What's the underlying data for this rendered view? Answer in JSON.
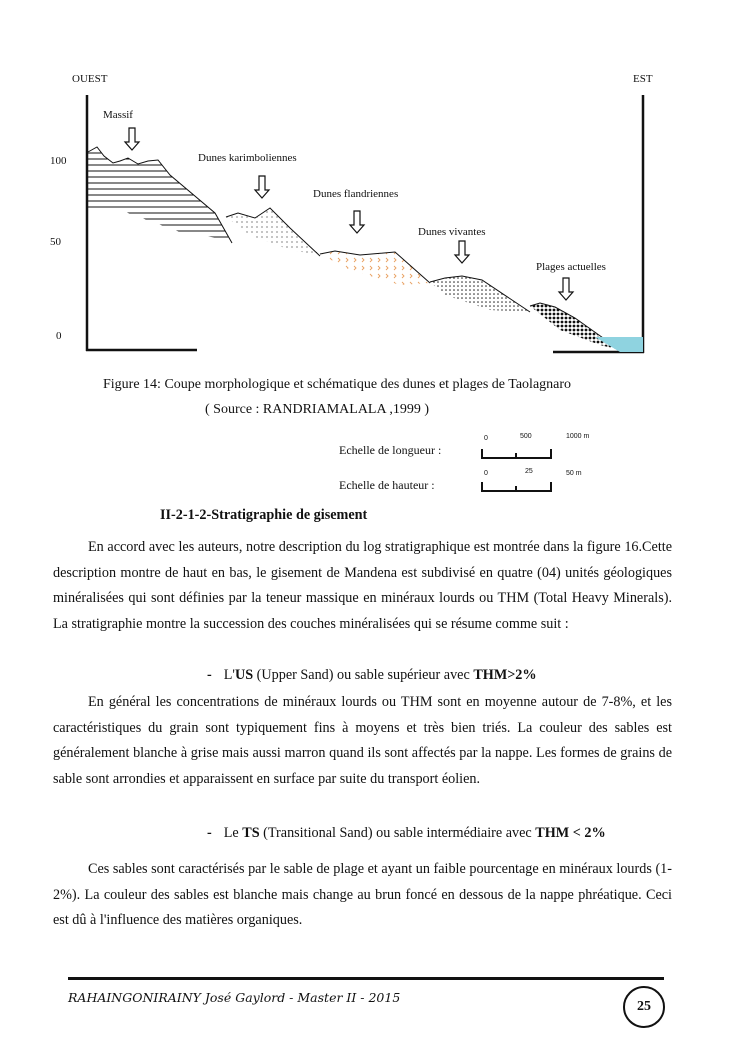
{
  "figure": {
    "west_label": "OUEST",
    "east_label": "EST",
    "y_ticks": [
      "100",
      "50",
      "0"
    ],
    "units": [
      "Massif",
      "Dunes karimboliennes",
      "Dunes flandriennes",
      "Dunes vivantes",
      "Plages actuelles"
    ],
    "caption": "Figure  14: Coupe morphologique et schématique des dunes et plages de Taolagnaro",
    "source": "( Source : RANDRIAMALALA ,1999 )",
    "water_color": "#8fd3e0",
    "flandrian_color": "#e8a060"
  },
  "scales": {
    "length_label": "Echelle de longueur :",
    "length_ticks": [
      "0",
      "500",
      "1000 m"
    ],
    "height_label": "Echelle de hauteur :",
    "height_ticks": [
      "0",
      "25",
      "50 m"
    ]
  },
  "section": {
    "heading": "II-2-1-2-Stratigraphie de gisement",
    "intro": "En accord avec les auteurs, notre description du log stratigraphique est montrée dans la figure 16.Cette description montre de haut en bas, le gisement de Mandena est subdivisé en quatre (04) unités géologiques minéralisées qui sont définies par la teneur massique en minéraux lourds ou THM (Total Heavy Minerals). La stratigraphie montre la succession des couches minéralisées qui se résume comme suit :",
    "bullet1": {
      "dash": "-",
      "pre": "L'",
      "bold": "US",
      "mid": " (Upper Sand) ou sable supérieur avec ",
      "bold2": "THM>2%"
    },
    "para1": "En général les concentrations de minéraux lourds ou THM sont en  moyenne autour de 7-8%, et les caractéristiques du grain sont typiquement fins à moyens  et très bien triés. La couleur des sables est généralement blanche à grise mais aussi marron quand ils sont affectés par la nappe. Les formes de grains de sable sont arrondies et apparaissent en surface par suite du transport éolien.",
    "bullet2": {
      "dash": "-",
      "pre": "Le ",
      "bold": "TS",
      "mid": " (Transitional Sand) ou sable intermédiaire avec ",
      "bold2": "THM < 2%"
    },
    "para2": "Ces sables sont caractérisés par le sable de plage et  ayant un faible pourcentage en minéraux lourds (1-2%). La couleur des sables est blanche mais change au brun foncé en dessous de la nappe phréatique. Ceci est dû à l'influence des matières organiques."
  },
  "footer": {
    "author": "RAHAINGONIRAINY José Gaylord - Master II - 2015",
    "page_number": "25"
  }
}
